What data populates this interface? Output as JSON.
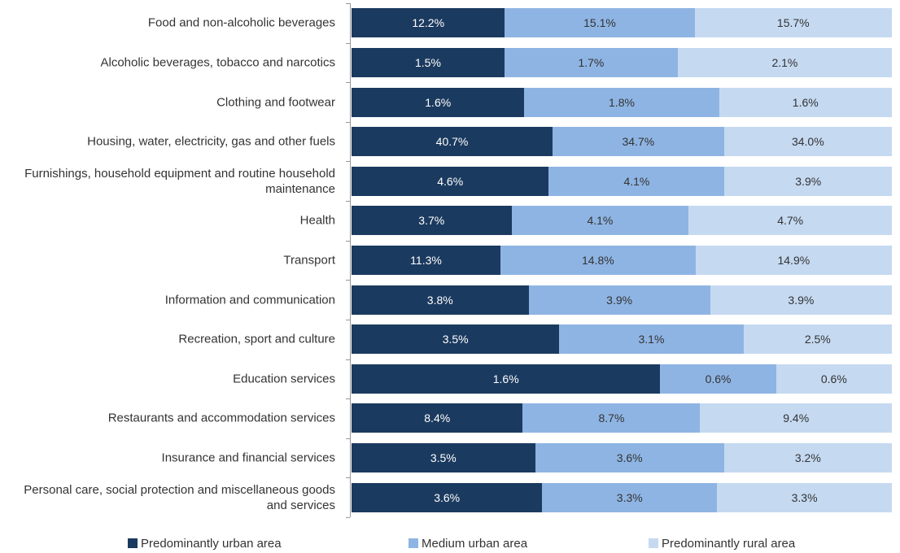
{
  "chart_data": {
    "type": "bar",
    "orientation": "horizontal",
    "stacked": "percent",
    "categories": [
      "Food and non-alcoholic beverages",
      "Alcoholic beverages, tobacco and narcotics",
      "Clothing and footwear",
      "Housing, water, electricity, gas and other fuels",
      "Furnishings, household equipment and routine household maintenance",
      "Health",
      "Transport",
      "Information and communication",
      "Recreation, sport and culture",
      "Education services",
      "Restaurants and accommodation services",
      "Insurance and financial services",
      "Personal care, social protection and miscellaneous goods and services"
    ],
    "series": [
      {
        "name": "Predominantly urban area",
        "color": "#1b3a5f",
        "values": [
          12.2,
          1.5,
          1.6,
          40.7,
          4.6,
          3.7,
          11.3,
          3.8,
          3.5,
          1.6,
          8.4,
          3.5,
          3.6
        ],
        "value_labels": [
          "12.2%",
          "1.5%",
          "1.6%",
          "40.7%",
          "4.6%",
          "3.7%",
          "11.3%",
          "3.8%",
          "3.5%",
          "1.6%",
          "8.4%",
          "3.5%",
          "3.6%"
        ]
      },
      {
        "name": "Medium urban area",
        "color": "#8eb4e3",
        "values": [
          15.1,
          1.7,
          1.8,
          34.7,
          4.1,
          4.1,
          14.8,
          3.9,
          3.1,
          0.6,
          8.7,
          3.6,
          3.3
        ],
        "value_labels": [
          "15.1%",
          "1.7%",
          "1.8%",
          "34.7%",
          "4.1%",
          "4.1%",
          "14.8%",
          "3.9%",
          "3.1%",
          "0.6%",
          "8.7%",
          "3.6%",
          "3.3%"
        ]
      },
      {
        "name": "Predominantly rural area",
        "color": "#c5d9f1",
        "values": [
          15.7,
          2.1,
          1.6,
          34.0,
          3.9,
          4.7,
          14.9,
          3.9,
          2.5,
          0.6,
          9.4,
          3.2,
          3.3
        ],
        "value_labels": [
          "15.7%",
          "2.1%",
          "1.6%",
          "34.0%",
          "3.9%",
          "4.7%",
          "14.9%",
          "3.9%",
          "2.5%",
          "0.6%",
          "9.4%",
          "3.2%",
          "3.3%"
        ]
      }
    ],
    "legend": "bottom"
  }
}
